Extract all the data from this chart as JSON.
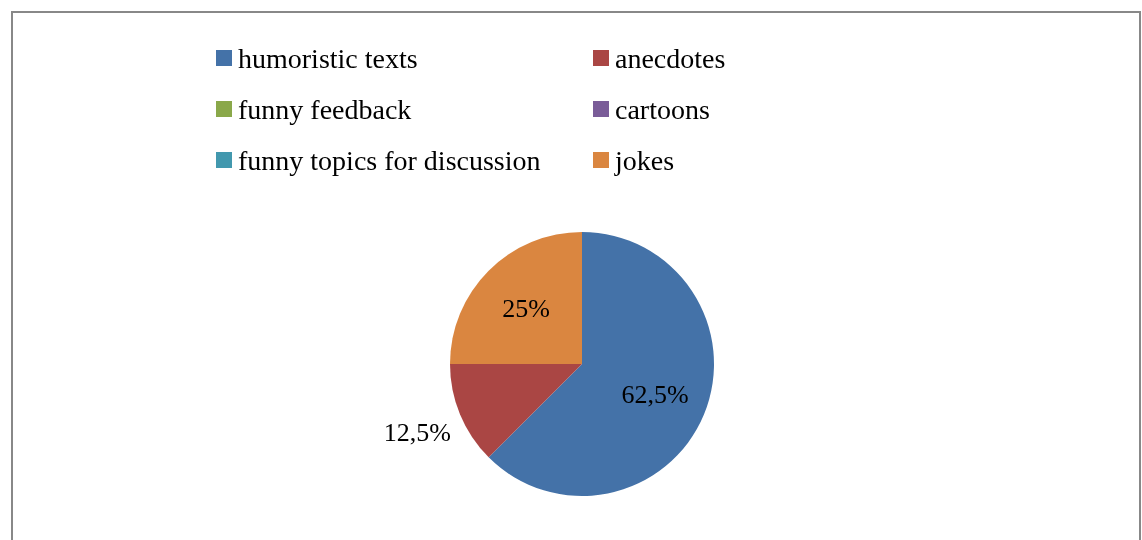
{
  "chart_data": {
    "type": "pie",
    "categories": [
      "humoristic texts",
      "anecdotes",
      "funny feedback",
      "cartoons",
      "funny topics for discussion",
      "jokes"
    ],
    "values": [
      62.5,
      12.5,
      0,
      0,
      0,
      25
    ],
    "value_labels": [
      "62,5%",
      "12,5%",
      null,
      null,
      null,
      "25%"
    ],
    "colors": [
      "#4472a8",
      "#aa4644",
      "#8aa84a",
      "#7a5c98",
      "#4298ae",
      "#da8640"
    ],
    "legend": "top"
  }
}
